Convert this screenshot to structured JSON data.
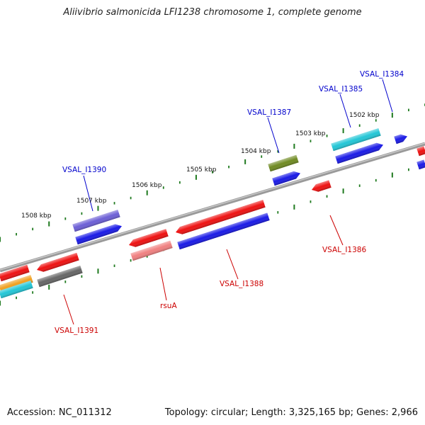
{
  "title": "Aliivibrio salmonicida LFI1238 chromosome 1, complete genome",
  "footer": {
    "accession": "Accession: NC_011312",
    "summary": "Topology: circular; Length: 3,325,165 bp; Genes: 2,966"
  },
  "colors": {
    "backbone": "#7f7f7f",
    "tick": "#1f7a1f",
    "forward_label": "#0000cc",
    "reverse_label": "#cc0000",
    "red": "#ee1111",
    "blue": "#1a1ae6",
    "cyan": "#22c6d6",
    "olive": "#6f8a22",
    "purple": "#6c5fd6",
    "gray": "#666666",
    "salmon": "#f08080",
    "orange": "#f0a020"
  },
  "kbp_labels": [
    "1502 kbp",
    "1503 kbp",
    "1504 kbp",
    "1505 kbp",
    "1506 kbp",
    "1507 kbp",
    "1508 kbp"
  ],
  "gene_labels": {
    "top": [
      "VSAL_I1384",
      "VSAL_I1385",
      "VSAL_I1387",
      "VSAL_I1390"
    ],
    "bottom": [
      "VSAL_I1386",
      "VSAL_I1388",
      "rsuA",
      "VSAL_I1391"
    ]
  }
}
